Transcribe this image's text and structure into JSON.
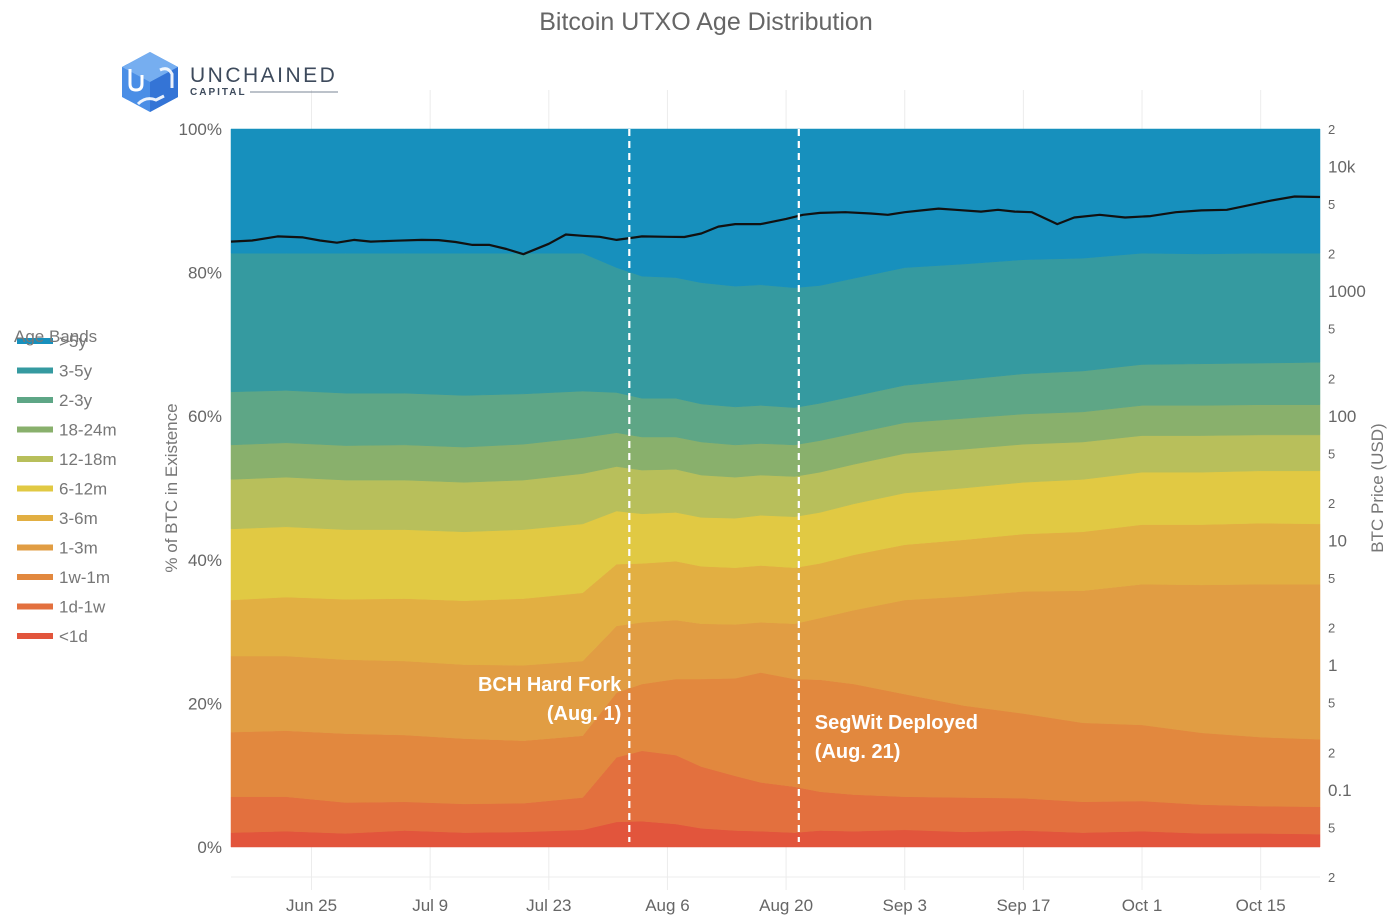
{
  "chart_data": {
    "type": "area",
    "stacked": true,
    "normalized": true,
    "title": "Bitcoin UTXO Age Distribution",
    "ylabel": "% of BTC in Existence",
    "y2label": "BTC Price (USD)",
    "xlabel": "",
    "ylim": [
      0,
      100
    ],
    "y2scale": "log",
    "y2lim": [
      0.02,
      20000
    ],
    "yticks": [
      "0%",
      "20%",
      "40%",
      "60%",
      "80%",
      "100%"
    ],
    "ytick_values": [
      0,
      20,
      40,
      60,
      80,
      100
    ],
    "y2ticks": [
      {
        "value": 20000,
        "label": "2",
        "major": false
      },
      {
        "value": 10000,
        "label": "10k",
        "major": true
      },
      {
        "value": 5000,
        "label": "5",
        "major": false
      },
      {
        "value": 2000,
        "label": "2",
        "major": false
      },
      {
        "value": 1000,
        "label": "1000",
        "major": true
      },
      {
        "value": 500,
        "label": "5",
        "major": false
      },
      {
        "value": 200,
        "label": "2",
        "major": false
      },
      {
        "value": 100,
        "label": "100",
        "major": true
      },
      {
        "value": 50,
        "label": "5",
        "major": false
      },
      {
        "value": 20,
        "label": "2",
        "major": false
      },
      {
        "value": 10,
        "label": "10",
        "major": true
      },
      {
        "value": 5,
        "label": "5",
        "major": false
      },
      {
        "value": 2,
        "label": "2",
        "major": false
      },
      {
        "value": 1,
        "label": "1",
        "major": true
      },
      {
        "value": 0.5,
        "label": "5",
        "major": false
      },
      {
        "value": 0.2,
        "label": "2",
        "major": false
      },
      {
        "value": 0.1,
        "label": "0.1",
        "major": true
      },
      {
        "value": 0.05,
        "label": "5",
        "major": false
      },
      {
        "value": 0.02,
        "label": "2",
        "major": false
      }
    ],
    "xrange_days": [
      -9.5,
      119
    ],
    "xtick_labels": [
      "Jun 25",
      "Jul 9",
      "Jul 23",
      "Aug 6",
      "Aug 20",
      "Sep 3",
      "Sep 17",
      "Oct 1",
      "Oct 15"
    ],
    "xtick_days": [
      0,
      14,
      28,
      42,
      56,
      70,
      84,
      98,
      112
    ],
    "x_day0": "Jun 25",
    "x_days": [
      -9.5,
      -3,
      4,
      11,
      18,
      25,
      32,
      36,
      39,
      43,
      46,
      50,
      53,
      57,
      60,
      64,
      70,
      77,
      84,
      91,
      98,
      105,
      112,
      119
    ],
    "legend": {
      "title": "Age Bands",
      "position": "left"
    },
    "series": [
      {
        "name": "<1d",
        "color": "#e2553c",
        "values": [
          2.0,
          2.2,
          1.9,
          2.3,
          2.0,
          2.1,
          2.4,
          3.5,
          3.6,
          3.2,
          2.6,
          2.3,
          2.2,
          2.0,
          2.3,
          2.2,
          2.4,
          2.1,
          2.3,
          2.0,
          2.2,
          1.9,
          1.9,
          1.8
        ]
      },
      {
        "name": "1d-1w",
        "color": "#e3703e",
        "values": [
          5.0,
          4.8,
          4.3,
          4.0,
          4.0,
          4.0,
          4.5,
          9.0,
          9.8,
          9.6,
          8.6,
          7.6,
          6.8,
          6.4,
          5.4,
          5.1,
          4.6,
          4.8,
          4.5,
          4.3,
          4.2,
          4.0,
          3.8,
          3.8
        ]
      },
      {
        "name": "1w-1m",
        "color": "#e2883e",
        "values": [
          9.0,
          9.2,
          9.6,
          9.3,
          9.1,
          8.7,
          8.6,
          9.0,
          9.3,
          10.6,
          12.2,
          13.6,
          15.3,
          15.0,
          15.6,
          15.4,
          14.3,
          12.8,
          11.8,
          11.0,
          10.6,
          10.0,
          9.6,
          9.4
        ]
      },
      {
        "name": "1-3m",
        "color": "#e19d43",
        "values": [
          10.6,
          10.4,
          10.3,
          10.3,
          10.3,
          10.5,
          10.4,
          9.3,
          8.6,
          8.2,
          7.7,
          7.5,
          7.0,
          7.7,
          8.6,
          10.3,
          13.1,
          15.2,
          17.0,
          18.4,
          19.6,
          20.6,
          21.3,
          21.6
        ]
      },
      {
        "name": "3-6m",
        "color": "#e2af42",
        "values": [
          7.8,
          8.2,
          8.4,
          8.7,
          8.9,
          9.3,
          9.5,
          8.6,
          8.2,
          8.2,
          8.0,
          7.9,
          7.9,
          7.8,
          7.6,
          7.7,
          7.7,
          7.9,
          8.0,
          8.2,
          8.3,
          8.4,
          8.5,
          8.4
        ]
      },
      {
        "name": "6-12m",
        "color": "#e1c943",
        "values": [
          9.9,
          9.8,
          9.7,
          9.6,
          9.6,
          9.6,
          9.6,
          7.4,
          6.9,
          6.8,
          6.8,
          6.9,
          7.0,
          7.1,
          7.1,
          7.1,
          7.2,
          7.2,
          7.2,
          7.3,
          7.3,
          7.3,
          7.3,
          7.4
        ]
      },
      {
        "name": "12-18m",
        "color": "#b8bf5b",
        "values": [
          6.9,
          6.9,
          6.9,
          6.9,
          6.9,
          6.9,
          7.0,
          6.2,
          6.1,
          6.0,
          5.9,
          5.7,
          5.6,
          5.6,
          5.6,
          5.5,
          5.5,
          5.4,
          5.3,
          5.2,
          5.1,
          5.1,
          5.0,
          5.0
        ]
      },
      {
        "name": "18-24m",
        "color": "#89b06c",
        "values": [
          4.8,
          4.8,
          4.8,
          4.9,
          4.9,
          5.0,
          5.0,
          4.7,
          4.6,
          4.5,
          4.6,
          4.5,
          4.4,
          4.4,
          4.4,
          4.3,
          4.3,
          4.3,
          4.2,
          4.2,
          4.2,
          4.2,
          4.2,
          4.2
        ]
      },
      {
        "name": "2-3y",
        "color": "#5ea686",
        "values": [
          7.4,
          7.3,
          7.3,
          7.2,
          7.2,
          7.0,
          6.5,
          5.6,
          5.4,
          5.4,
          5.3,
          5.3,
          5.3,
          5.2,
          5.2,
          5.2,
          5.2,
          5.4,
          5.6,
          5.7,
          5.7,
          5.8,
          5.8,
          5.9
        ]
      },
      {
        "name": "3-5y",
        "color": "#359aa0",
        "values": [
          19.3,
          19.1,
          19.5,
          19.5,
          19.8,
          19.6,
          19.2,
          17.4,
          17.0,
          16.8,
          16.9,
          16.8,
          16.8,
          16.7,
          16.4,
          16.4,
          16.4,
          16.1,
          15.9,
          15.7,
          15.5,
          15.3,
          15.3,
          15.2
        ]
      },
      {
        "name": ">5y",
        "color": "#1790bd",
        "values": [
          17.3,
          17.3,
          17.3,
          17.3,
          17.3,
          17.3,
          17.3,
          17.3,
          17.3,
          17.3,
          17.3,
          17.3,
          17.3,
          17.3,
          17.3,
          17.3,
          17.3,
          17.3,
          17.3,
          17.3,
          17.3,
          17.3,
          17.3,
          17.3
        ]
      }
    ],
    "price_series": {
      "name": "BTC Price (USD)",
      "axis": "right",
      "color": "#111111",
      "x_days": [
        -9.5,
        -7,
        -4,
        -1,
        1,
        3,
        5,
        7,
        10,
        13,
        15,
        17,
        19,
        21,
        23,
        25,
        28,
        30,
        32,
        34,
        36,
        39,
        42,
        44,
        46,
        48,
        50,
        53,
        56,
        58,
        60,
        63,
        66,
        68,
        70,
        72,
        74,
        76,
        79,
        81,
        83,
        85,
        88,
        90,
        93,
        96,
        99,
        102,
        105,
        108,
        110,
        113,
        116,
        119
      ],
      "values": [
        2500,
        2550,
        2750,
        2700,
        2550,
        2450,
        2580,
        2500,
        2540,
        2580,
        2570,
        2480,
        2350,
        2350,
        2180,
        1980,
        2400,
        2850,
        2780,
        2730,
        2580,
        2750,
        2730,
        2720,
        2900,
        3300,
        3450,
        3450,
        3800,
        4100,
        4250,
        4300,
        4200,
        4100,
        4300,
        4450,
        4600,
        4500,
        4350,
        4500,
        4350,
        4300,
        3450,
        3900,
        4100,
        3900,
        4000,
        4300,
        4450,
        4500,
        4800,
        5300,
        5750,
        5700
      ]
    },
    "annotations": [
      {
        "day": 37.5,
        "text_line1": "BCH Hard Fork",
        "text_line2": "(Aug. 1)",
        "align": "right"
      },
      {
        "day": 57.5,
        "text_line1": "SegWit Deployed",
        "text_line2": "(Aug. 21)",
        "align": "left"
      }
    ]
  },
  "logo": {
    "name": "UNCHAINED",
    "sub": "CAPITAL"
  }
}
